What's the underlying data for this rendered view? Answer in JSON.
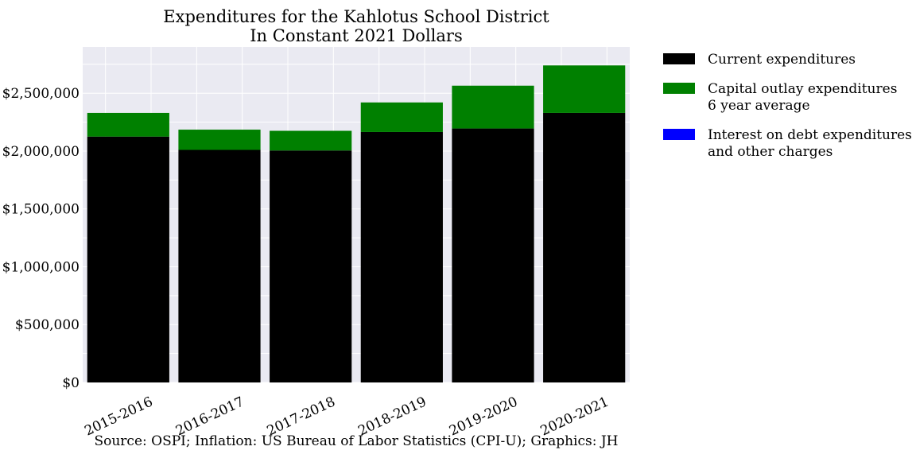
{
  "chart_data": {
    "type": "bar",
    "stacked": true,
    "title": "Expenditures for the Kahlotus School District",
    "subtitle": "In Constant 2021 Dollars",
    "xlabel": "",
    "ylabel": "",
    "categories": [
      "2015-2016",
      "2016-2017",
      "2017-2018",
      "2018-2019",
      "2019-2020",
      "2020-2021"
    ],
    "series": [
      {
        "name": "Current expenditures",
        "color": "#000000",
        "values": [
          2125000,
          2010000,
          2005000,
          2165000,
          2195000,
          2330000
        ]
      },
      {
        "name": "Capital outlay expenditures\n6 year average",
        "color": "#008000",
        "values": [
          205000,
          175000,
          170000,
          255000,
          370000,
          410000
        ]
      },
      {
        "name": "Interest on debt expenditures\nand other charges",
        "color": "#0000ff",
        "values": [
          0,
          0,
          0,
          0,
          0,
          0
        ]
      }
    ],
    "ylim": [
      0,
      2900000
    ],
    "yticks": [
      0,
      500000,
      1000000,
      1500000,
      2000000,
      2500000
    ],
    "ytick_labels": [
      "$0",
      "$500,000",
      "$1,000,000",
      "$1,500,000",
      "$2,000,000",
      "$2,500,000"
    ],
    "grid": true,
    "legend_position": "outside-right-top",
    "plot_background": "#eaeaf2",
    "source": "Source: OSPI; Inflation: US Bureau of Labor Statistics (CPI-U); Graphics: JH"
  }
}
